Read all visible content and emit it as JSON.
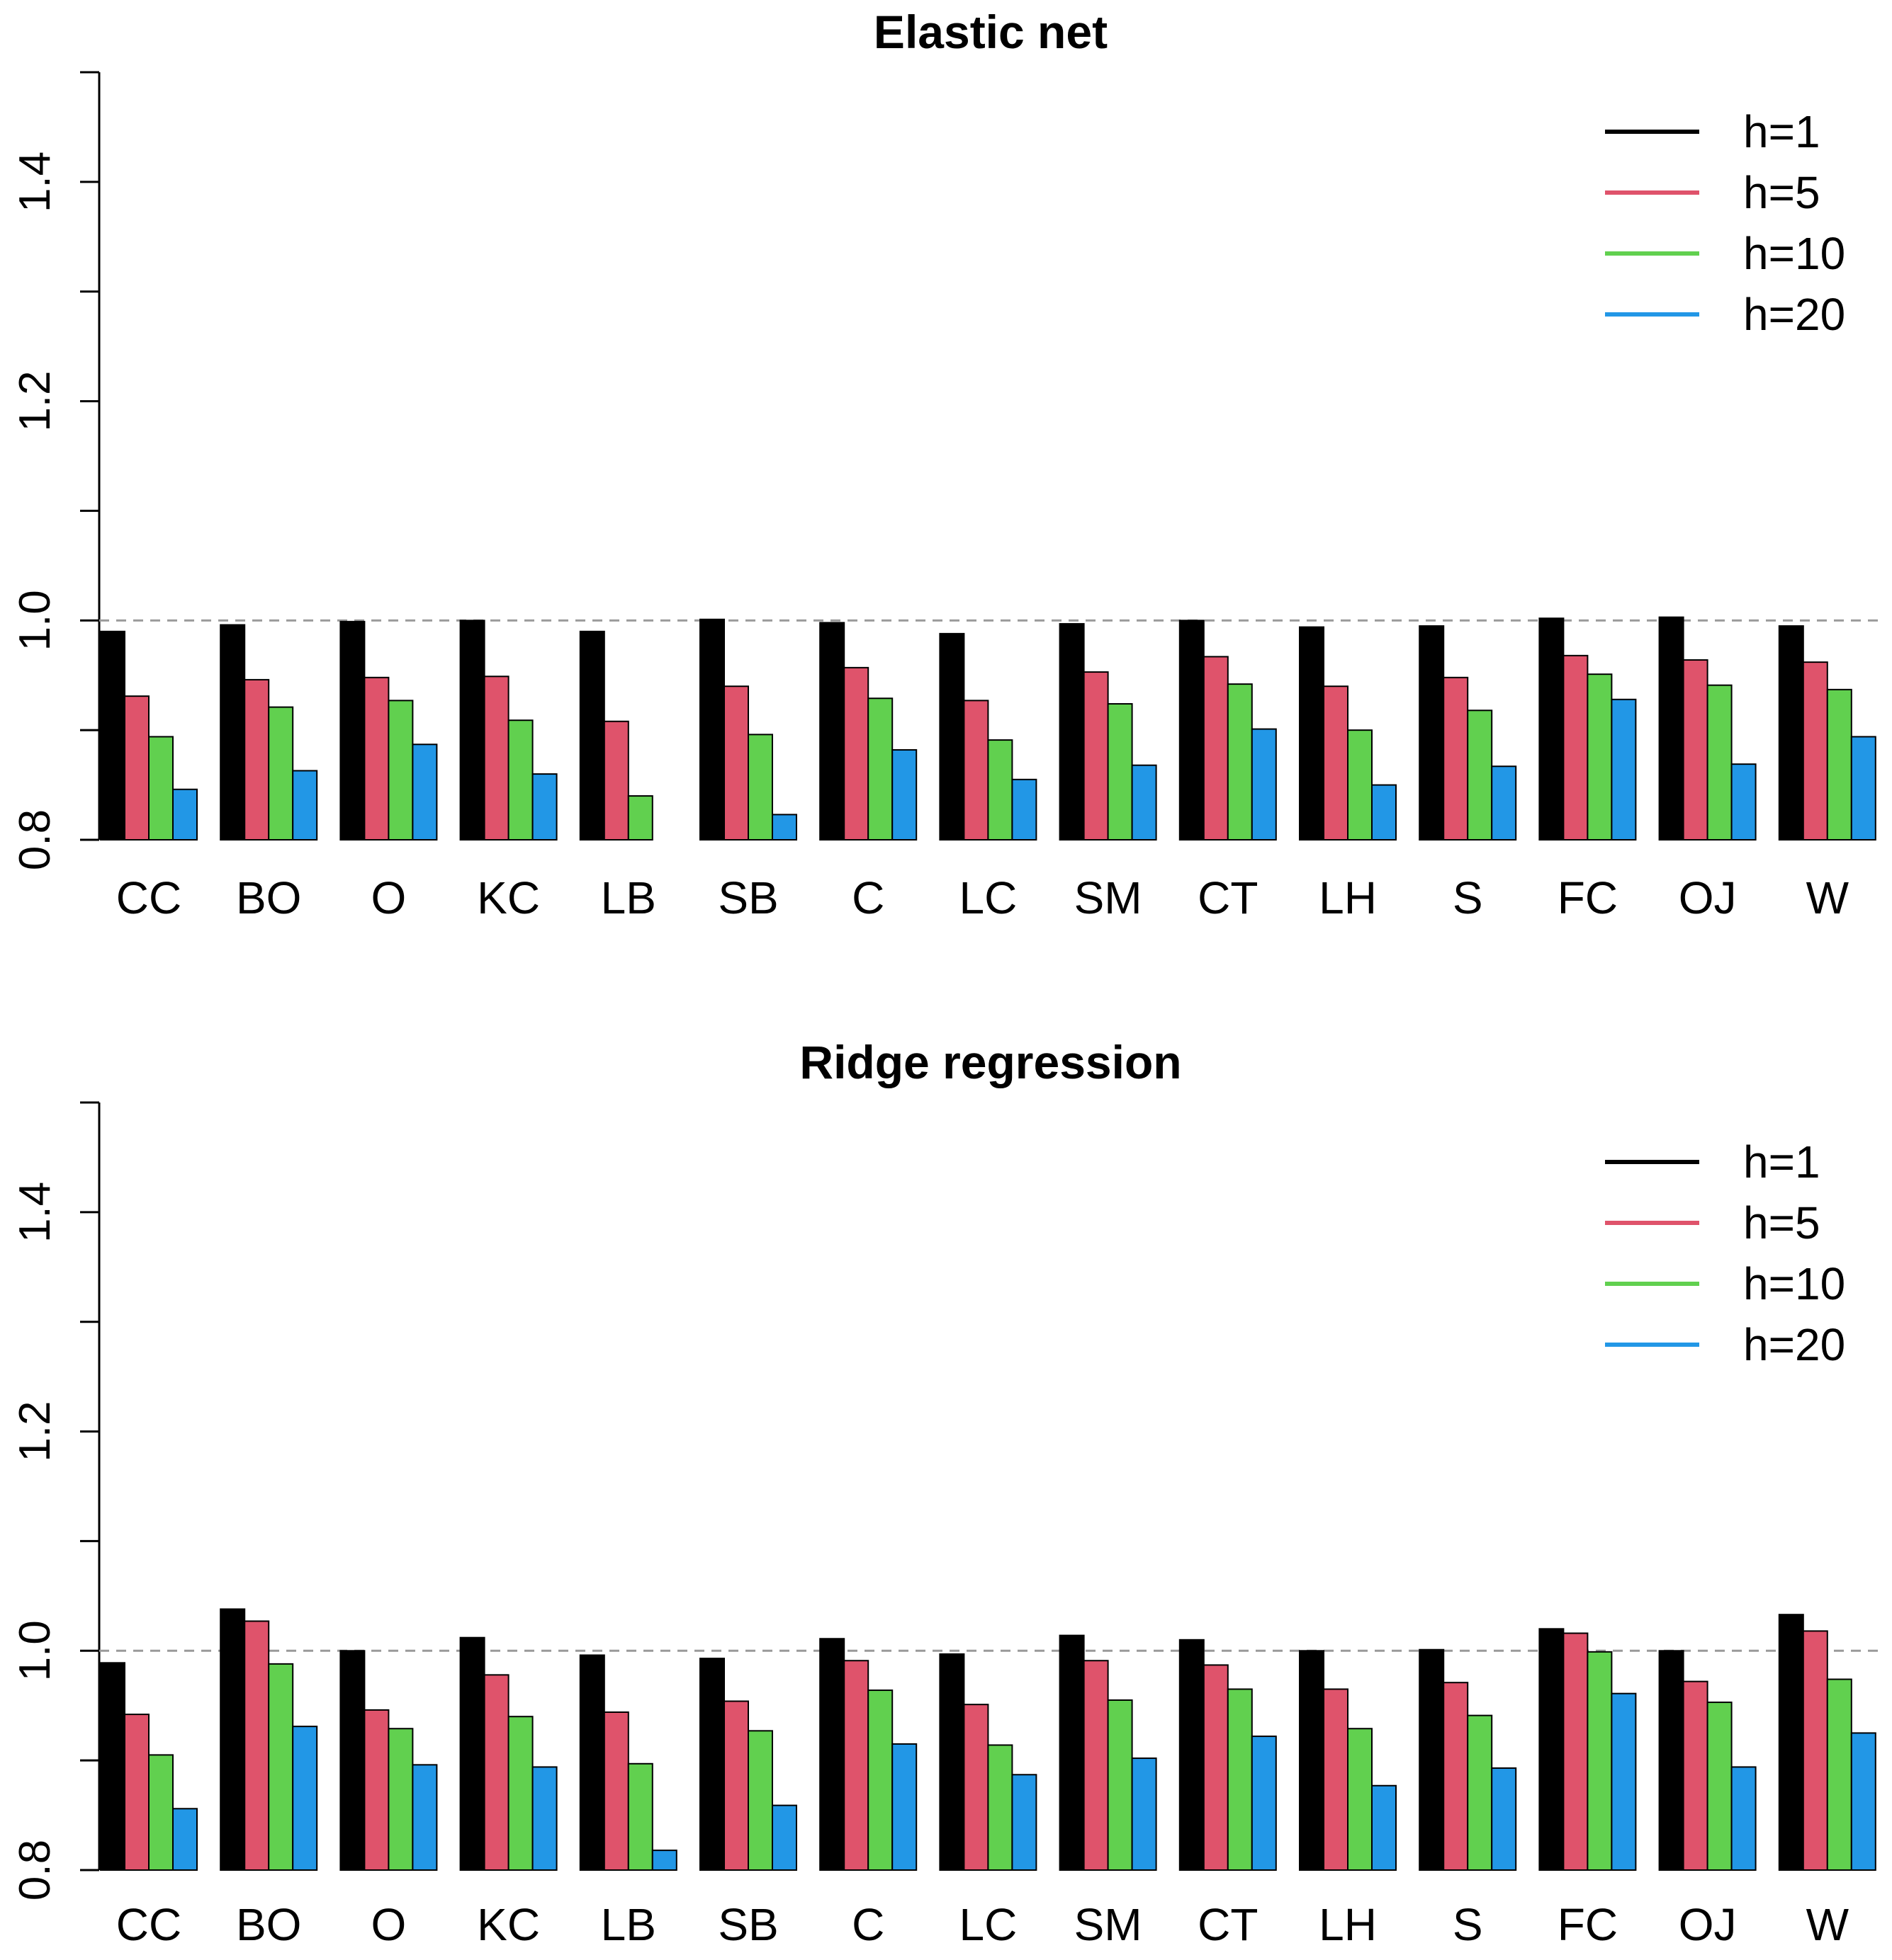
{
  "chart_data": [
    {
      "type": "bar",
      "title": "Elastic net",
      "xlabel": "",
      "ylabel": "",
      "ylim": [
        0.8,
        1.5
      ],
      "yticks": [
        "0.8",
        "1.0",
        "1.2",
        "1.4"
      ],
      "reference_line": 1.0,
      "legend_position": "top-right",
      "categories": [
        "CC",
        "BO",
        "O",
        "KC",
        "LB",
        "SB",
        "C",
        "LC",
        "SM",
        "CT",
        "LH",
        "S",
        "FC",
        "OJ",
        "W"
      ],
      "series": [
        {
          "name": "h=1",
          "color": "#000000",
          "values": [
            0.99,
            0.996,
            0.999,
            1.0,
            0.99,
            1.001,
            0.998,
            0.988,
            0.997,
            1.0,
            0.994,
            0.995,
            1.002,
            1.003,
            0.995
          ]
        },
        {
          "name": "h=5",
          "color": "#DF536B",
          "values": [
            0.931,
            0.946,
            0.948,
            0.949,
            0.908,
            0.94,
            0.957,
            0.927,
            0.953,
            0.967,
            0.94,
            0.948,
            0.968,
            0.964,
            0.962
          ]
        },
        {
          "name": "h=10",
          "color": "#61D04F",
          "values": [
            0.894,
            0.921,
            0.927,
            0.909,
            0.84,
            0.896,
            0.929,
            0.891,
            0.924,
            0.942,
            0.9,
            0.918,
            0.951,
            0.941,
            0.937
          ]
        },
        {
          "name": "h=20",
          "color": "#2297E6",
          "values": [
            0.846,
            0.863,
            0.887,
            0.86,
            0.8,
            0.823,
            0.882,
            0.855,
            0.868,
            0.901,
            0.85,
            0.867,
            0.928,
            0.869,
            0.894
          ]
        }
      ]
    },
    {
      "type": "bar",
      "title": "Ridge regression",
      "xlabel": "",
      "ylabel": "",
      "ylim": [
        0.8,
        1.5
      ],
      "yticks": [
        "0.8",
        "1.0",
        "1.2",
        "1.4"
      ],
      "reference_line": 1.0,
      "legend_position": "top-right",
      "categories": [
        "CC",
        "BO",
        "O",
        "KC",
        "LB",
        "SB",
        "C",
        "LC",
        "SM",
        "CT",
        "LH",
        "S",
        "FC",
        "OJ",
        "W"
      ],
      "series": [
        {
          "name": "h=1",
          "color": "#000000",
          "values": [
            0.989,
            1.038,
            1.0,
            1.012,
            0.996,
            0.993,
            1.011,
            0.997,
            1.014,
            1.01,
            1.0,
            1.001,
            1.02,
            1.0,
            1.033
          ]
        },
        {
          "name": "h=5",
          "color": "#DF536B",
          "values": [
            0.942,
            1.027,
            0.946,
            0.978,
            0.944,
            0.954,
            0.991,
            0.951,
            0.991,
            0.987,
            0.965,
            0.971,
            1.016,
            0.972,
            1.018
          ]
        },
        {
          "name": "h=10",
          "color": "#61D04F",
          "values": [
            0.905,
            0.988,
            0.929,
            0.94,
            0.897,
            0.927,
            0.964,
            0.914,
            0.955,
            0.965,
            0.929,
            0.941,
            0.999,
            0.953,
            0.974
          ]
        },
        {
          "name": "h=20",
          "color": "#2297E6",
          "values": [
            0.856,
            0.931,
            0.896,
            0.894,
            0.818,
            0.859,
            0.915,
            0.887,
            0.902,
            0.922,
            0.877,
            0.893,
            0.961,
            0.894,
            0.925
          ]
        }
      ]
    }
  ]
}
